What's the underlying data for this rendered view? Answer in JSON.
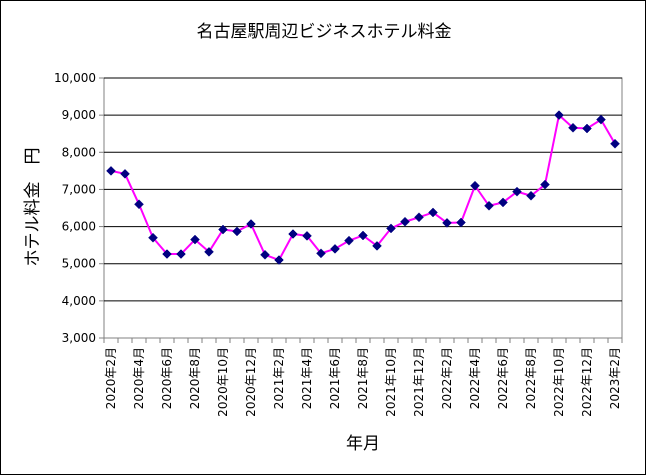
{
  "chart_data": {
    "type": "line",
    "title": "名古屋駅周辺ビジネスホテル料金",
    "xlabel": "年月",
    "ylabel": "ホテル料金　円",
    "ylim": [
      3000,
      10000
    ],
    "yticks": [
      3000,
      4000,
      5000,
      6000,
      7000,
      8000,
      9000,
      10000
    ],
    "ytick_labels": [
      "3,000",
      "4,000",
      "5,000",
      "6,000",
      "7,000",
      "8,000",
      "9,000",
      "10,000"
    ],
    "grid": true,
    "legend": "none",
    "line_color": "#ff00ff",
    "marker_color": "#000080",
    "plot_bg": "#ffffff",
    "categories": [
      "2020年2月",
      "",
      "2020年4月",
      "",
      "2020年6月",
      "",
      "2020年8月",
      "",
      "2020年10月",
      "",
      "2020年12月",
      "",
      "2021年2月",
      "",
      "2021年4月",
      "",
      "2021年6月",
      "",
      "2021年8月",
      "",
      "2021年10月",
      "",
      "2021年12月",
      "",
      "2022年2月",
      "",
      "2022年4月",
      "",
      "2022年6月",
      "",
      "2022年8月",
      "",
      "2022年10月",
      "",
      "2022年12月",
      "",
      "2023年2月"
    ],
    "tick_labels": [
      "2020年2月",
      "2020年4月",
      "2020年6月",
      "2020年8月",
      "2020年10月",
      "2020年12月",
      "2021年2月",
      "2021年4月",
      "2021年6月",
      "2021年8月",
      "2021年10月",
      "2021年12月",
      "2022年2月",
      "2022年4月",
      "2022年6月",
      "2022年8月",
      "2022年10月",
      "2022年12月",
      "2023年2月"
    ],
    "values": [
      7500,
      7420,
      6600,
      5700,
      5260,
      5260,
      5650,
      5320,
      5920,
      5870,
      6070,
      5240,
      5100,
      5800,
      5750,
      5280,
      5400,
      5620,
      5760,
      5480,
      5950,
      6130,
      6250,
      6380,
      6100,
      6110,
      7100,
      6560,
      6650,
      6940,
      6830,
      7130,
      9000,
      8660,
      8640,
      8880,
      8230
    ]
  }
}
